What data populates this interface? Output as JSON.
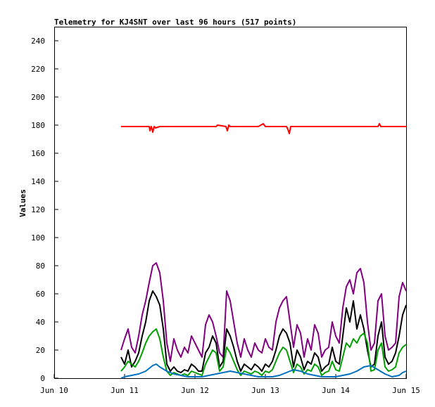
{
  "chart_data": {
    "type": "line",
    "title": "Telemetry for KJ4SNT over last 96 hours (517 points)",
    "xlabel": "",
    "ylabel": "Values",
    "xlim": [
      "Jun 10",
      "Jun 15"
    ],
    "ylim": [
      0,
      250
    ],
    "x_ticks": [
      "Jun 10",
      "Jun 11",
      "Jun 12",
      "Jun 13",
      "Jun 14",
      "Jun 15"
    ],
    "y_ticks": [
      0,
      20,
      40,
      60,
      80,
      100,
      120,
      140,
      160,
      180,
      200,
      220,
      240
    ],
    "grid": false,
    "legend": "none",
    "x_unit": "days",
    "series": [
      {
        "color": "#ff0000",
        "x": [
          0.95,
          1.2,
          1.3,
          1.35,
          1.36,
          1.38,
          1.4,
          1.42,
          1.44,
          1.5,
          2.0,
          2.3,
          2.32,
          2.44,
          2.46,
          2.48,
          2.5,
          2.6,
          2.9,
          2.97,
          3.0,
          3.05,
          3.3,
          3.32,
          3.34,
          3.36,
          3.4,
          4.0,
          4.6,
          4.62,
          4.64,
          5.0
        ],
        "y": [
          179,
          179,
          179,
          179,
          176,
          179,
          175,
          179,
          178,
          179,
          179,
          179,
          180,
          179,
          176,
          180,
          179,
          179,
          179,
          181,
          179,
          179,
          179,
          177,
          174,
          179,
          179,
          179,
          179,
          181,
          179,
          179
        ]
      },
      {
        "color": "#800080",
        "x": [
          0.95,
          1.0,
          1.05,
          1.1,
          1.15,
          1.2,
          1.25,
          1.3,
          1.35,
          1.4,
          1.45,
          1.5,
          1.55,
          1.6,
          1.65,
          1.7,
          1.75,
          1.8,
          1.85,
          1.9,
          1.95,
          2.0,
          2.05,
          2.1,
          2.15,
          2.2,
          2.25,
          2.3,
          2.35,
          2.4,
          2.45,
          2.5,
          2.55,
          2.6,
          2.65,
          2.7,
          2.75,
          2.8,
          2.85,
          2.9,
          2.95,
          3.0,
          3.05,
          3.1,
          3.15,
          3.2,
          3.25,
          3.3,
          3.35,
          3.4,
          3.45,
          3.5,
          3.55,
          3.6,
          3.65,
          3.7,
          3.75,
          3.8,
          3.85,
          3.9,
          3.95,
          4.0,
          4.05,
          4.1,
          4.15,
          4.2,
          4.25,
          4.3,
          4.35,
          4.4,
          4.45,
          4.5,
          4.55,
          4.6,
          4.65,
          4.7,
          4.75,
          4.8,
          4.85,
          4.9,
          4.95,
          5.0
        ],
        "y": [
          20,
          28,
          35,
          22,
          18,
          30,
          45,
          55,
          68,
          80,
          82,
          75,
          55,
          25,
          12,
          28,
          20,
          15,
          22,
          18,
          30,
          25,
          20,
          15,
          38,
          45,
          40,
          30,
          18,
          15,
          62,
          55,
          40,
          25,
          15,
          28,
          20,
          15,
          25,
          20,
          18,
          28,
          22,
          20,
          40,
          50,
          55,
          58,
          40,
          22,
          38,
          32,
          15,
          28,
          20,
          38,
          32,
          15,
          20,
          22,
          40,
          30,
          25,
          50,
          65,
          70,
          60,
          75,
          78,
          68,
          40,
          20,
          25,
          55,
          60,
          30,
          20,
          22,
          25,
          58,
          68,
          62
        ]
      },
      {
        "color": "#000000",
        "x": [
          0.95,
          1.0,
          1.05,
          1.1,
          1.15,
          1.2,
          1.25,
          1.3,
          1.35,
          1.4,
          1.45,
          1.5,
          1.55,
          1.6,
          1.65,
          1.7,
          1.75,
          1.8,
          1.85,
          1.9,
          1.95,
          2.0,
          2.05,
          2.1,
          2.15,
          2.2,
          2.25,
          2.3,
          2.35,
          2.4,
          2.45,
          2.5,
          2.55,
          2.6,
          2.65,
          2.7,
          2.75,
          2.8,
          2.85,
          2.9,
          2.95,
          3.0,
          3.05,
          3.1,
          3.15,
          3.2,
          3.25,
          3.3,
          3.35,
          3.4,
          3.45,
          3.5,
          3.55,
          3.6,
          3.65,
          3.7,
          3.75,
          3.8,
          3.85,
          3.9,
          3.95,
          4.0,
          4.05,
          4.1,
          4.15,
          4.2,
          4.25,
          4.3,
          4.35,
          4.4,
          4.45,
          4.5,
          4.55,
          4.6,
          4.65,
          4.7,
          4.75,
          4.8,
          4.85,
          4.9,
          4.95,
          5.0
        ],
        "y": [
          15,
          10,
          20,
          8,
          12,
          18,
          30,
          40,
          55,
          62,
          58,
          52,
          35,
          10,
          5,
          8,
          5,
          4,
          6,
          5,
          10,
          8,
          5,
          5,
          18,
          22,
          30,
          25,
          8,
          12,
          35,
          30,
          22,
          12,
          5,
          10,
          8,
          6,
          10,
          8,
          5,
          10,
          8,
          12,
          20,
          30,
          35,
          32,
          25,
          8,
          20,
          15,
          6,
          12,
          10,
          18,
          15,
          5,
          8,
          10,
          22,
          12,
          10,
          30,
          50,
          40,
          55,
          35,
          45,
          35,
          20,
          8,
          10,
          30,
          40,
          15,
          10,
          12,
          18,
          30,
          45,
          52
        ]
      },
      {
        "color": "#00a000",
        "x": [
          0.95,
          1.0,
          1.05,
          1.1,
          1.15,
          1.2,
          1.25,
          1.3,
          1.35,
          1.4,
          1.45,
          1.5,
          1.55,
          1.6,
          1.65,
          1.7,
          1.75,
          1.8,
          1.85,
          1.9,
          1.95,
          2.0,
          2.05,
          2.1,
          2.15,
          2.2,
          2.25,
          2.3,
          2.35,
          2.4,
          2.45,
          2.5,
          2.55,
          2.6,
          2.65,
          2.7,
          2.75,
          2.8,
          2.85,
          2.9,
          2.95,
          3.0,
          3.05,
          3.1,
          3.15,
          3.2,
          3.25,
          3.3,
          3.35,
          3.4,
          3.45,
          3.5,
          3.55,
          3.6,
          3.65,
          3.7,
          3.75,
          3.8,
          3.85,
          3.9,
          3.95,
          4.0,
          4.05,
          4.1,
          4.15,
          4.2,
          4.25,
          4.3,
          4.35,
          4.4,
          4.45,
          4.5,
          4.55,
          4.6,
          4.65,
          4.7,
          4.75,
          4.8,
          4.85,
          4.9,
          4.95,
          5.0
        ],
        "y": [
          5,
          8,
          12,
          10,
          8,
          12,
          18,
          25,
          30,
          33,
          35,
          28,
          15,
          5,
          2,
          4,
          3,
          2,
          3,
          2,
          5,
          4,
          3,
          2,
          10,
          15,
          20,
          18,
          5,
          8,
          22,
          18,
          12,
          6,
          2,
          5,
          4,
          3,
          5,
          4,
          2,
          5,
          4,
          6,
          12,
          18,
          22,
          20,
          12,
          4,
          10,
          8,
          3,
          6,
          5,
          10,
          8,
          2,
          4,
          5,
          12,
          6,
          5,
          15,
          25,
          22,
          28,
          25,
          30,
          32,
          25,
          5,
          6,
          20,
          25,
          8,
          5,
          6,
          8,
          18,
          22,
          24
        ]
      },
      {
        "color": "#0070c0",
        "x": [
          0.95,
          1.0,
          1.1,
          1.2,
          1.3,
          1.4,
          1.45,
          1.5,
          1.6,
          1.7,
          1.8,
          1.9,
          2.0,
          2.1,
          2.2,
          2.3,
          2.4,
          2.5,
          2.6,
          2.7,
          2.8,
          2.9,
          3.0,
          3.1,
          3.2,
          3.3,
          3.4,
          3.5,
          3.6,
          3.7,
          3.8,
          3.9,
          4.0,
          4.1,
          4.2,
          4.3,
          4.4,
          4.5,
          4.6,
          4.7,
          4.8,
          4.9,
          4.95,
          5.0
        ],
        "y": [
          0,
          1,
          2,
          3,
          5,
          9,
          10,
          8,
          5,
          3,
          2,
          1,
          1,
          1,
          2,
          3,
          4,
          5,
          4,
          3,
          2,
          1,
          1,
          1,
          2,
          4,
          6,
          5,
          3,
          2,
          1,
          1,
          1,
          2,
          3,
          5,
          8,
          9,
          6,
          3,
          1,
          2,
          4,
          5
        ]
      }
    ]
  }
}
